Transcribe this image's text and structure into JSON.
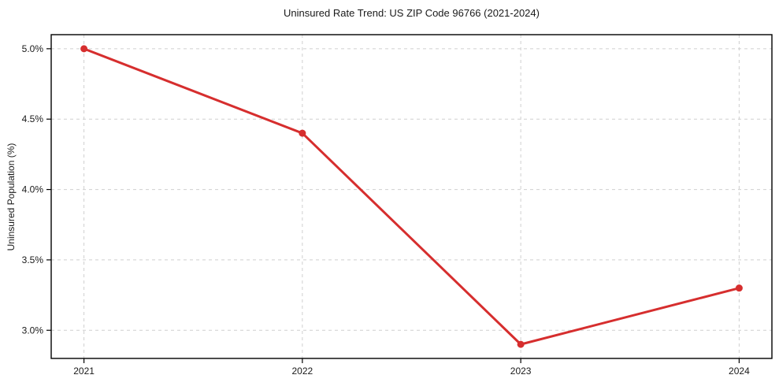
{
  "chart_data": {
    "type": "line",
    "title": "Uninsured Rate Trend: US ZIP Code 96766 (2021-2024)",
    "xlabel": "",
    "ylabel": "Uninsured Population (%)",
    "x": [
      2021,
      2022,
      2023,
      2024
    ],
    "values": [
      5.0,
      4.4,
      2.9,
      3.3
    ],
    "x_tick_labels": [
      "2021",
      "2022",
      "2023",
      "2024"
    ],
    "y_tick_values": [
      3.0,
      3.5,
      4.0,
      4.5,
      5.0
    ],
    "y_tick_labels": [
      "3.0%",
      "3.5%",
      "4.0%",
      "4.5%",
      "5.0%"
    ],
    "xlim": [
      2020.85,
      2024.15
    ],
    "ylim": [
      2.8,
      5.1
    ],
    "grid": true,
    "legend": false,
    "colors": {
      "line": "#d62e2e",
      "marker": "#d62e2e",
      "grid": "#cfcfcf",
      "axis": "#000000",
      "text": "#1a1a1a",
      "background": "#ffffff"
    }
  }
}
